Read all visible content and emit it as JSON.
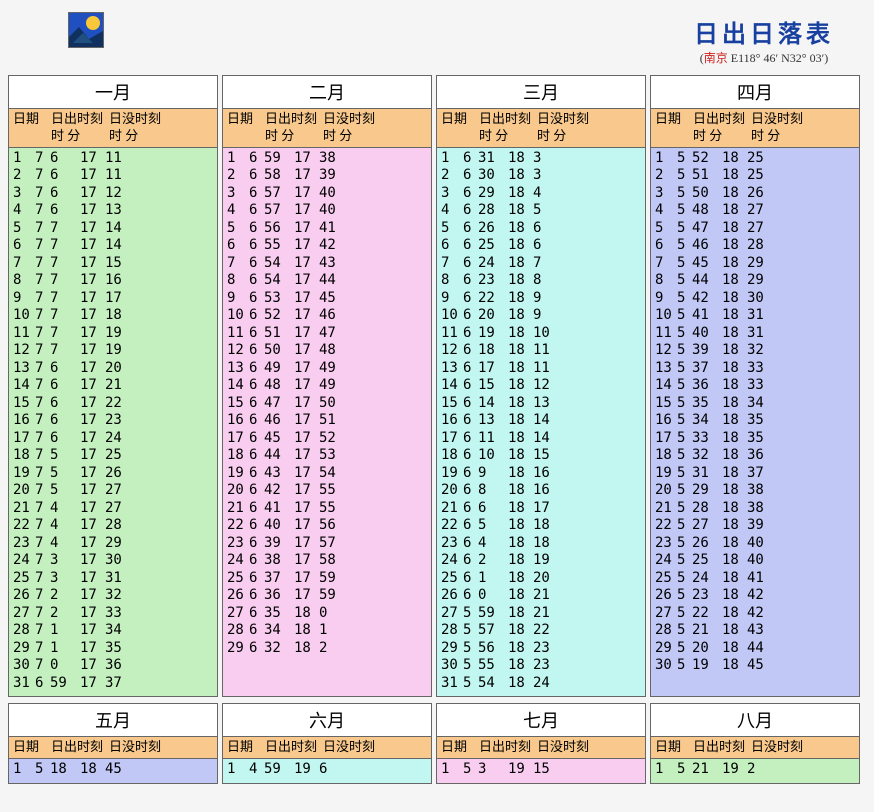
{
  "title": "日出日落表",
  "location_label": "南京",
  "coords": "E118° 46′ N32° 03′",
  "header_labels": {
    "date": "日期",
    "rise": "日出时刻",
    "set": "日没时刻",
    "hm": "时 分"
  },
  "logo": {
    "bg": "#2050c0",
    "sun": "#f8c838",
    "hill": "#103060"
  },
  "month_colors": {
    "jan": "#c4f0c0",
    "feb": "#f8cdf0",
    "mar": "#c2f6f0",
    "apr": "#c2c8f6",
    "may": "#c2c8f6",
    "jun": "#c2f6f0",
    "jul": "#f8cdf0",
    "aug": "#c4f0c0",
    "header_bg": "#f8c88c",
    "border": "#666666",
    "page_bg": "#f5f5f5",
    "title_color": "#1840a0",
    "loc_color": "#d02020"
  },
  "months": [
    {
      "key": "jan",
      "name": "一月",
      "rows": [
        [
          1,
          7,
          6,
          17,
          11
        ],
        [
          2,
          7,
          6,
          17,
          11
        ],
        [
          3,
          7,
          6,
          17,
          12
        ],
        [
          4,
          7,
          6,
          17,
          13
        ],
        [
          5,
          7,
          7,
          17,
          14
        ],
        [
          6,
          7,
          7,
          17,
          14
        ],
        [
          7,
          7,
          7,
          17,
          15
        ],
        [
          8,
          7,
          7,
          17,
          16
        ],
        [
          9,
          7,
          7,
          17,
          17
        ],
        [
          10,
          7,
          7,
          17,
          18
        ],
        [
          11,
          7,
          7,
          17,
          19
        ],
        [
          12,
          7,
          7,
          17,
          19
        ],
        [
          13,
          7,
          6,
          17,
          20
        ],
        [
          14,
          7,
          6,
          17,
          21
        ],
        [
          15,
          7,
          6,
          17,
          22
        ],
        [
          16,
          7,
          6,
          17,
          23
        ],
        [
          17,
          7,
          6,
          17,
          24
        ],
        [
          18,
          7,
          5,
          17,
          25
        ],
        [
          19,
          7,
          5,
          17,
          26
        ],
        [
          20,
          7,
          5,
          17,
          27
        ],
        [
          21,
          7,
          4,
          17,
          27
        ],
        [
          22,
          7,
          4,
          17,
          28
        ],
        [
          23,
          7,
          4,
          17,
          29
        ],
        [
          24,
          7,
          3,
          17,
          30
        ],
        [
          25,
          7,
          3,
          17,
          31
        ],
        [
          26,
          7,
          2,
          17,
          32
        ],
        [
          27,
          7,
          2,
          17,
          33
        ],
        [
          28,
          7,
          1,
          17,
          34
        ],
        [
          29,
          7,
          1,
          17,
          35
        ],
        [
          30,
          7,
          0,
          17,
          36
        ],
        [
          31,
          6,
          59,
          17,
          37
        ]
      ]
    },
    {
      "key": "feb",
      "name": "二月",
      "rows": [
        [
          1,
          6,
          59,
          17,
          38
        ],
        [
          2,
          6,
          58,
          17,
          39
        ],
        [
          3,
          6,
          57,
          17,
          40
        ],
        [
          4,
          6,
          57,
          17,
          40
        ],
        [
          5,
          6,
          56,
          17,
          41
        ],
        [
          6,
          6,
          55,
          17,
          42
        ],
        [
          7,
          6,
          54,
          17,
          43
        ],
        [
          8,
          6,
          54,
          17,
          44
        ],
        [
          9,
          6,
          53,
          17,
          45
        ],
        [
          10,
          6,
          52,
          17,
          46
        ],
        [
          11,
          6,
          51,
          17,
          47
        ],
        [
          12,
          6,
          50,
          17,
          48
        ],
        [
          13,
          6,
          49,
          17,
          49
        ],
        [
          14,
          6,
          48,
          17,
          49
        ],
        [
          15,
          6,
          47,
          17,
          50
        ],
        [
          16,
          6,
          46,
          17,
          51
        ],
        [
          17,
          6,
          45,
          17,
          52
        ],
        [
          18,
          6,
          44,
          17,
          53
        ],
        [
          19,
          6,
          43,
          17,
          54
        ],
        [
          20,
          6,
          42,
          17,
          55
        ],
        [
          21,
          6,
          41,
          17,
          55
        ],
        [
          22,
          6,
          40,
          17,
          56
        ],
        [
          23,
          6,
          39,
          17,
          57
        ],
        [
          24,
          6,
          38,
          17,
          58
        ],
        [
          25,
          6,
          37,
          17,
          59
        ],
        [
          26,
          6,
          36,
          17,
          59
        ],
        [
          27,
          6,
          35,
          18,
          0
        ],
        [
          28,
          6,
          34,
          18,
          1
        ],
        [
          29,
          6,
          32,
          18,
          2
        ]
      ]
    },
    {
      "key": "mar",
      "name": "三月",
      "rows": [
        [
          1,
          6,
          31,
          18,
          3
        ],
        [
          2,
          6,
          30,
          18,
          3
        ],
        [
          3,
          6,
          29,
          18,
          4
        ],
        [
          4,
          6,
          28,
          18,
          5
        ],
        [
          5,
          6,
          26,
          18,
          6
        ],
        [
          6,
          6,
          25,
          18,
          6
        ],
        [
          7,
          6,
          24,
          18,
          7
        ],
        [
          8,
          6,
          23,
          18,
          8
        ],
        [
          9,
          6,
          22,
          18,
          9
        ],
        [
          10,
          6,
          20,
          18,
          9
        ],
        [
          11,
          6,
          19,
          18,
          10
        ],
        [
          12,
          6,
          18,
          18,
          11
        ],
        [
          13,
          6,
          17,
          18,
          11
        ],
        [
          14,
          6,
          15,
          18,
          12
        ],
        [
          15,
          6,
          14,
          18,
          13
        ],
        [
          16,
          6,
          13,
          18,
          14
        ],
        [
          17,
          6,
          11,
          18,
          14
        ],
        [
          18,
          6,
          10,
          18,
          15
        ],
        [
          19,
          6,
          9,
          18,
          16
        ],
        [
          20,
          6,
          8,
          18,
          16
        ],
        [
          21,
          6,
          6,
          18,
          17
        ],
        [
          22,
          6,
          5,
          18,
          18
        ],
        [
          23,
          6,
          4,
          18,
          18
        ],
        [
          24,
          6,
          2,
          18,
          19
        ],
        [
          25,
          6,
          1,
          18,
          20
        ],
        [
          26,
          6,
          0,
          18,
          21
        ],
        [
          27,
          5,
          59,
          18,
          21
        ],
        [
          28,
          5,
          57,
          18,
          22
        ],
        [
          29,
          5,
          56,
          18,
          23
        ],
        [
          30,
          5,
          55,
          18,
          23
        ],
        [
          31,
          5,
          54,
          18,
          24
        ]
      ]
    },
    {
      "key": "apr",
      "name": "四月",
      "rows": [
        [
          1,
          5,
          52,
          18,
          25
        ],
        [
          2,
          5,
          51,
          18,
          25
        ],
        [
          3,
          5,
          50,
          18,
          26
        ],
        [
          4,
          5,
          48,
          18,
          27
        ],
        [
          5,
          5,
          47,
          18,
          27
        ],
        [
          6,
          5,
          46,
          18,
          28
        ],
        [
          7,
          5,
          45,
          18,
          29
        ],
        [
          8,
          5,
          44,
          18,
          29
        ],
        [
          9,
          5,
          42,
          18,
          30
        ],
        [
          10,
          5,
          41,
          18,
          31
        ],
        [
          11,
          5,
          40,
          18,
          31
        ],
        [
          12,
          5,
          39,
          18,
          32
        ],
        [
          13,
          5,
          37,
          18,
          33
        ],
        [
          14,
          5,
          36,
          18,
          33
        ],
        [
          15,
          5,
          35,
          18,
          34
        ],
        [
          16,
          5,
          34,
          18,
          35
        ],
        [
          17,
          5,
          33,
          18,
          35
        ],
        [
          18,
          5,
          32,
          18,
          36
        ],
        [
          19,
          5,
          31,
          18,
          37
        ],
        [
          20,
          5,
          29,
          18,
          38
        ],
        [
          21,
          5,
          28,
          18,
          38
        ],
        [
          22,
          5,
          27,
          18,
          39
        ],
        [
          23,
          5,
          26,
          18,
          40
        ],
        [
          24,
          5,
          25,
          18,
          40
        ],
        [
          25,
          5,
          24,
          18,
          41
        ],
        [
          26,
          5,
          23,
          18,
          42
        ],
        [
          27,
          5,
          22,
          18,
          42
        ],
        [
          28,
          5,
          21,
          18,
          43
        ],
        [
          29,
          5,
          20,
          18,
          44
        ],
        [
          30,
          5,
          19,
          18,
          45
        ]
      ]
    },
    {
      "key": "may",
      "name": "五月",
      "rows": [
        [
          1,
          5,
          18,
          18,
          45
        ]
      ]
    },
    {
      "key": "jun",
      "name": "六月",
      "rows": [
        [
          1,
          4,
          59,
          19,
          6
        ]
      ]
    },
    {
      "key": "jul",
      "name": "七月",
      "rows": [
        [
          1,
          5,
          3,
          19,
          15
        ]
      ]
    },
    {
      "key": "aug",
      "name": "八月",
      "rows": [
        [
          1,
          5,
          21,
          19,
          2
        ]
      ]
    }
  ]
}
